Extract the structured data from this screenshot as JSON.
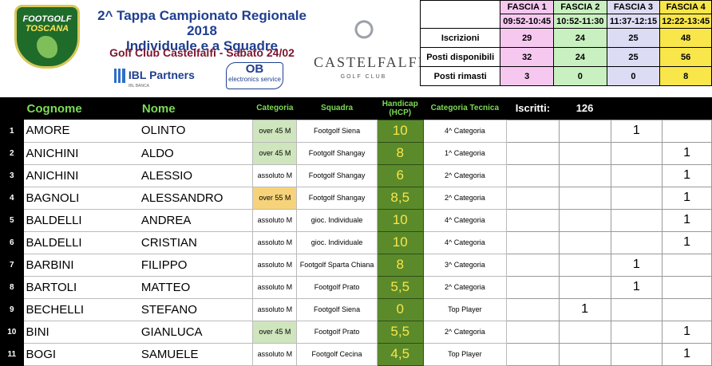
{
  "header": {
    "logo_line1": "FOOTGOLF",
    "logo_line2": "TOSCANA",
    "title_line1": "2^ Tappa Campionato Regionale 2018",
    "title_line2": "Individuale e a Squadre",
    "venue": "Golf Club Castelfalfi - Sabato  24/02",
    "sponsor1_name": "IBL Partners",
    "sponsor1_tagline": "IBL BANCA",
    "sponsor2_name": "OB",
    "sponsor2_tagline": "electronics service",
    "club_name": "CASTELFALFI",
    "club_sub": "GOLF CLUB"
  },
  "fasce": {
    "labels": [
      "FASCIA 1",
      "FASCIA 2",
      "FASCIA 3",
      "FASCIA 4"
    ],
    "times": [
      "09:52-10:45",
      "10:52-11:30",
      "11:37-12:15",
      "12:22-13:45"
    ],
    "colors": [
      "#f6c8f0",
      "#c9f0c0",
      "#dcdcf5",
      "#f8e64a"
    ],
    "rows": [
      {
        "label": "Iscrizioni",
        "values": [
          "29",
          "24",
          "25",
          "48"
        ]
      },
      {
        "label": "Posti disponibili",
        "values": [
          "32",
          "24",
          "25",
          "56"
        ]
      },
      {
        "label": "Posti rimasti",
        "values": [
          "3",
          "0",
          "0",
          "8"
        ]
      }
    ]
  },
  "table": {
    "headers": {
      "cognome": "Cognome",
      "nome": "Nome",
      "categoria": "Categoria",
      "squadra": "Squadra",
      "handicap": "Handicap (HCP)",
      "categoria_tecnica": "Categoria Tecnica",
      "iscritti_label": "Iscritti:",
      "iscritti_count": "126"
    },
    "rows": [
      {
        "n": "1",
        "cognome": "AMORE",
        "nome": "OLINTO",
        "categoria": "over 45 M",
        "squadra": "Footgolf Siena",
        "hcp": "10",
        "ct": "4^ Categoria",
        "f1": "",
        "f2": "",
        "f3": "1",
        "f4": ""
      },
      {
        "n": "2",
        "cognome": "ANICHINI",
        "nome": "ALDO",
        "categoria": "over 45 M",
        "squadra": "Footgolf Shangay",
        "hcp": "8",
        "ct": "1^ Categoria",
        "f1": "",
        "f2": "",
        "f3": "",
        "f4": "1"
      },
      {
        "n": "3",
        "cognome": "ANICHINI",
        "nome": "ALESSIO",
        "categoria": "assoluto M",
        "squadra": "Footgolf Shangay",
        "hcp": "6",
        "ct": "2^ Categoria",
        "f1": "",
        "f2": "",
        "f3": "",
        "f4": "1"
      },
      {
        "n": "4",
        "cognome": "BAGNOLI",
        "nome": "ALESSANDRO",
        "categoria": "over 55 M",
        "squadra": "Footgolf Shangay",
        "hcp": "8,5",
        "ct": "2^ Categoria",
        "f1": "",
        "f2": "",
        "f3": "",
        "f4": "1"
      },
      {
        "n": "5",
        "cognome": "BALDELLI",
        "nome": "ANDREA",
        "categoria": "assoluto M",
        "squadra": "gioc. Individuale",
        "hcp": "10",
        "ct": "4^ Categoria",
        "f1": "",
        "f2": "",
        "f3": "",
        "f4": "1"
      },
      {
        "n": "6",
        "cognome": "BALDELLI",
        "nome": "CRISTIAN",
        "categoria": "assoluto M",
        "squadra": "gioc. Individuale",
        "hcp": "10",
        "ct": "4^ Categoria",
        "f1": "",
        "f2": "",
        "f3": "",
        "f4": "1"
      },
      {
        "n": "7",
        "cognome": "BARBINI",
        "nome": "FILIPPO",
        "categoria": "assoluto M",
        "squadra": "Footgolf Sparta Chiana",
        "hcp": "8",
        "ct": "3^ Categoria",
        "f1": "",
        "f2": "",
        "f3": "1",
        "f4": ""
      },
      {
        "n": "8",
        "cognome": "BARTOLI",
        "nome": "MATTEO",
        "categoria": "assoluto M",
        "squadra": "Footgolf Prato",
        "hcp": "5,5",
        "ct": "2^ Categoria",
        "f1": "",
        "f2": "",
        "f3": "1",
        "f4": ""
      },
      {
        "n": "9",
        "cognome": "BECHELLI",
        "nome": "STEFANO",
        "categoria": "assoluto M",
        "squadra": "Footgolf Siena",
        "hcp": "0",
        "ct": "Top Player",
        "f1": "",
        "f2": "1",
        "f3": "",
        "f4": ""
      },
      {
        "n": "10",
        "cognome": "BINI",
        "nome": "GIANLUCA",
        "categoria": "over 45 M",
        "squadra": "Footgolf Prato",
        "hcp": "5,5",
        "ct": "2^ Categoria",
        "f1": "",
        "f2": "",
        "f3": "",
        "f4": "1"
      },
      {
        "n": "11",
        "cognome": "BOGI",
        "nome": "SAMUELE",
        "categoria": "assoluto M",
        "squadra": "Footgolf Cecina",
        "hcp": "4,5",
        "ct": "Top Player",
        "f1": "",
        "f2": "",
        "f3": "",
        "f4": "1"
      }
    ]
  }
}
